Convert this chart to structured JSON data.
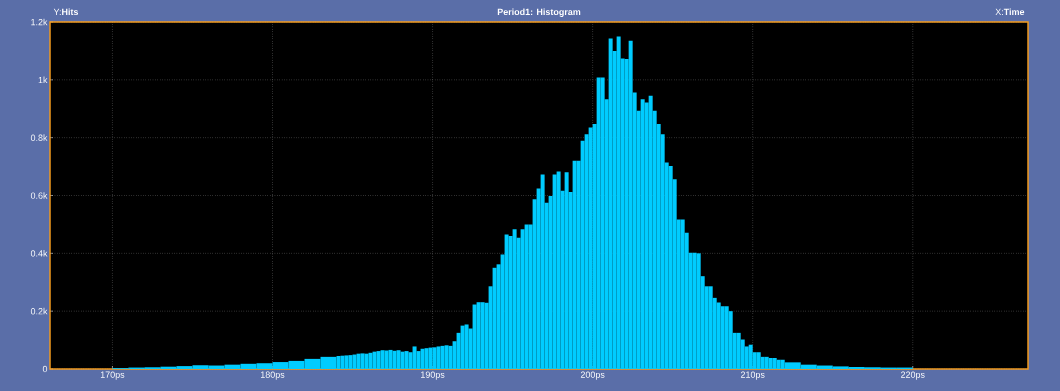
{
  "chart_data": {
    "type": "histogram",
    "title": "Period1: Histogram",
    "xlabel": "X:**Time**",
    "ylabel": "Y:**Hits**",
    "color": "#00ccff",
    "grid": true,
    "bins": [
      170,
      171,
      172,
      173,
      174,
      175,
      176,
      177,
      178,
      179,
      180,
      181,
      182,
      183,
      184,
      184.25,
      184.5,
      184.75,
      185,
      185.25,
      185.5,
      185.75,
      186,
      186.25,
      186.5,
      186.75,
      187,
      187.25,
      187.5,
      187.75,
      188,
      188.25,
      188.5,
      188.75,
      189,
      189.25,
      189.5,
      189.75,
      190,
      190.25,
      190.5,
      190.75,
      191,
      191.25,
      191.5,
      191.75,
      192,
      192.25,
      192.5,
      192.75,
      193,
      193.25,
      193.5,
      193.75,
      194,
      194.25,
      194.5,
      194.75,
      195,
      195.25,
      195.5,
      195.75,
      196,
      196.25,
      196.5,
      196.75,
      197,
      197.25,
      197.5,
      197.75,
      198,
      198.25,
      198.5,
      198.75,
      199,
      199.25,
      199.5,
      199.75,
      200,
      200.25,
      200.5,
      200.75,
      201,
      201.25,
      201.5,
      201.75,
      202,
      202.25,
      202.5,
      202.75,
      203,
      203.25,
      203.5,
      203.75,
      204,
      204.25,
      204.5,
      204.75,
      205,
      205.25,
      205.5,
      205.75,
      206,
      206.25,
      206.5,
      206.75,
      207,
      207.25,
      207.5,
      207.75,
      208,
      208.25,
      208.5,
      208.75,
      209,
      209.25,
      209.5,
      209.75,
      210,
      210.25,
      210.5,
      210.75,
      211,
      211.25,
      211.5,
      211.75,
      212,
      213,
      214,
      215,
      216,
      217,
      218,
      219,
      220
    ],
    "values": [
      3,
      5,
      6,
      8,
      10,
      13,
      12,
      15,
      18,
      20,
      24,
      28,
      35,
      42,
      45,
      46,
      47,
      48,
      50,
      53,
      54,
      53,
      56,
      60,
      62,
      65,
      64,
      66,
      63,
      65,
      60,
      62,
      58,
      78,
      62,
      70,
      72,
      74,
      75,
      78,
      80,
      82,
      80,
      96,
      125,
      150,
      154,
      140,
      223,
      231,
      231,
      229,
      286,
      350,
      362,
      396,
      465,
      460,
      483,
      454,
      483,
      500,
      500,
      587,
      624,
      673,
      575,
      598,
      673,
      683,
      616,
      680,
      612,
      720,
      720,
      789,
      812,
      835,
      847,
      1008,
      1008,
      933,
      1143,
      1100,
      1150,
      1074,
      1072,
      1135,
      956,
      893,
      933,
      922,
      945,
      893,
      847,
      812,
      714,
      702,
      656,
      517,
      517,
      471,
      402,
      402,
      400,
      321,
      286,
      286,
      246,
      230,
      217,
      217,
      200,
      125,
      125,
      102,
      78,
      84,
      58,
      58,
      42,
      42,
      38,
      38,
      32,
      32,
      23,
      15,
      12,
      9,
      7,
      6,
      5,
      5
    ],
    "xlim": [
      166.1,
      227.2
    ],
    "ylim": [
      0,
      1200
    ],
    "xticks": [
      {
        "value": 170,
        "label": "170ps"
      },
      {
        "value": 180,
        "label": "180ps"
      },
      {
        "value": 190,
        "label": "190ps"
      },
      {
        "value": 200,
        "label": "200ps"
      },
      {
        "value": 210,
        "label": "210ps"
      },
      {
        "value": 220,
        "label": "220ps"
      }
    ],
    "yticks": [
      0,
      {
        "value": 200,
        "label": "0.2k"
      },
      {
        "value": 400,
        "label": "0.4k"
      },
      {
        "value": 600,
        "label": "0.6k"
      },
      {
        "value": 800,
        "label": "0.8k"
      },
      {
        "value": 1000,
        "label": "1k"
      },
      {
        "value": 1200,
        "label": "1.2k"
      }
    ]
  }
}
